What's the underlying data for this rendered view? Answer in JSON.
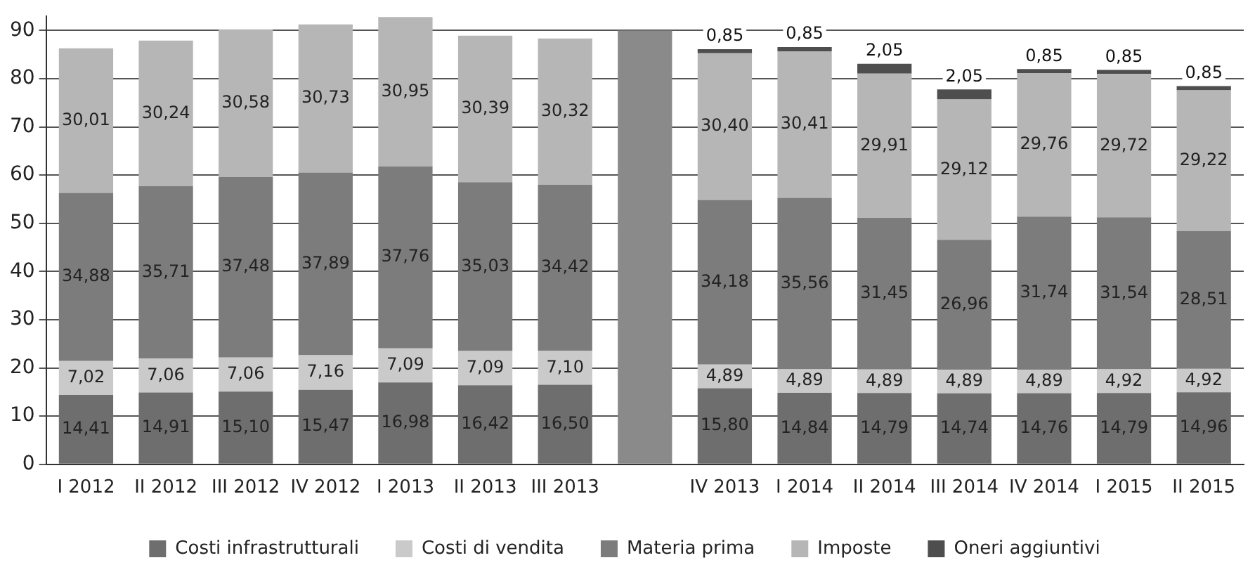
{
  "chart_data": {
    "type": "bar",
    "stacked": true,
    "categories": [
      "I 2012",
      "II 2012",
      "III 2012",
      "IV 2012",
      "I 2013",
      "II 2013",
      "III 2013",
      null,
      "IV 2013",
      "I 2014",
      "II 2014",
      "III 2014",
      "IV 2014",
      "I 2015",
      "II 2015"
    ],
    "series": [
      {
        "name": "Costi infrastrutturali",
        "color": "#6e6e6e",
        "values": [
          14.41,
          14.91,
          15.1,
          15.47,
          16.98,
          16.42,
          16.5,
          null,
          15.8,
          14.84,
          14.79,
          14.74,
          14.76,
          14.79,
          14.96
        ],
        "value_labels": [
          "14,41",
          "14,91",
          "15,10",
          "15,47",
          "16,98",
          "16,42",
          "16,50",
          null,
          "15,80",
          "14,84",
          "14,79",
          "14,74",
          "14,76",
          "14,79",
          "14,96"
        ]
      },
      {
        "name": "Costi di vendita",
        "color": "#cacaca",
        "values": [
          7.02,
          7.06,
          7.06,
          7.16,
          7.09,
          7.09,
          7.1,
          null,
          4.89,
          4.89,
          4.89,
          4.89,
          4.89,
          4.92,
          4.92
        ],
        "value_labels": [
          "7,02",
          "7,06",
          "7,06",
          "7,16",
          "7,09",
          "7,09",
          "7,10",
          null,
          "4,89",
          "4,89",
          "4,89",
          "4,89",
          "4,89",
          "4,92",
          "4,92"
        ]
      },
      {
        "name": "Materia prima",
        "color": "#7c7c7c",
        "values": [
          34.88,
          35.71,
          37.48,
          37.89,
          37.76,
          35.03,
          34.42,
          null,
          34.18,
          35.56,
          31.45,
          26.96,
          31.74,
          31.54,
          28.51
        ],
        "value_labels": [
          "34,88",
          "35,71",
          "37,48",
          "37,89",
          "37,76",
          "35,03",
          "34,42",
          null,
          "34,18",
          "35,56",
          "31,45",
          "26,96",
          "31,74",
          "31,54",
          "28,51"
        ]
      },
      {
        "name": "Imposte",
        "color": "#b6b6b6",
        "values": [
          30.01,
          30.24,
          30.58,
          30.73,
          30.95,
          30.39,
          30.32,
          null,
          30.4,
          30.41,
          29.91,
          29.12,
          29.76,
          29.72,
          29.22
        ],
        "value_labels": [
          "30,01",
          "30,24",
          "30,58",
          "30,73",
          "30,95",
          "30,39",
          "30,32",
          null,
          "30,40",
          "30,41",
          "29,91",
          "29,12",
          "29,76",
          "29,72",
          "29,22"
        ]
      },
      {
        "name": "Oneri aggiuntivi",
        "color": "#4e4e4e",
        "values": [
          null,
          null,
          null,
          null,
          null,
          null,
          null,
          null,
          0.85,
          0.85,
          2.05,
          2.05,
          0.85,
          0.85,
          0.85
        ],
        "value_labels": [
          null,
          null,
          null,
          null,
          null,
          null,
          null,
          null,
          "0,85",
          "0,85",
          "2,05",
          "2,05",
          "0,85",
          "0,85",
          "0,85"
        ]
      },
      {
        "color": "#8a8a8a",
        "values": [
          null,
          null,
          null,
          null,
          null,
          null,
          null,
          90,
          null,
          null,
          null,
          null,
          null,
          null,
          null
        ]
      }
    ],
    "ylim": [
      0,
      93
    ],
    "yticks": [
      0,
      10,
      20,
      30,
      40,
      50,
      60,
      70,
      80,
      90
    ],
    "grid": "y",
    "legend": "bottom"
  }
}
